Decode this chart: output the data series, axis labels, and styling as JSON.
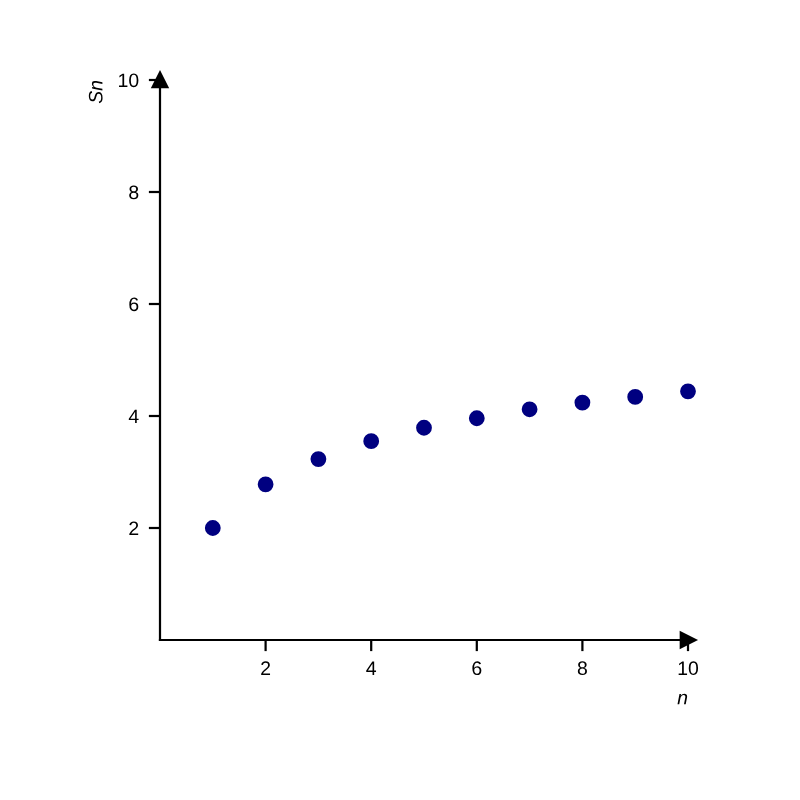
{
  "chart_data": {
    "type": "scatter",
    "xlabel": "n",
    "ylabel": "Sn",
    "x": [
      1,
      2,
      3,
      4,
      5,
      6,
      7,
      8,
      9,
      10
    ],
    "series": [
      {
        "color": "#000080",
        "values": [
          2.0,
          2.78,
          3.23,
          3.55,
          3.79,
          3.96,
          4.12,
          4.24,
          4.34,
          4.44
        ]
      }
    ],
    "xlim": [
      0,
      10
    ],
    "ylim": [
      0,
      10
    ],
    "xticks": [
      2,
      4,
      6,
      8,
      10
    ],
    "yticks": [
      2,
      4,
      6,
      8,
      10
    ],
    "grid": false,
    "legend": false,
    "marker": "circle"
  }
}
